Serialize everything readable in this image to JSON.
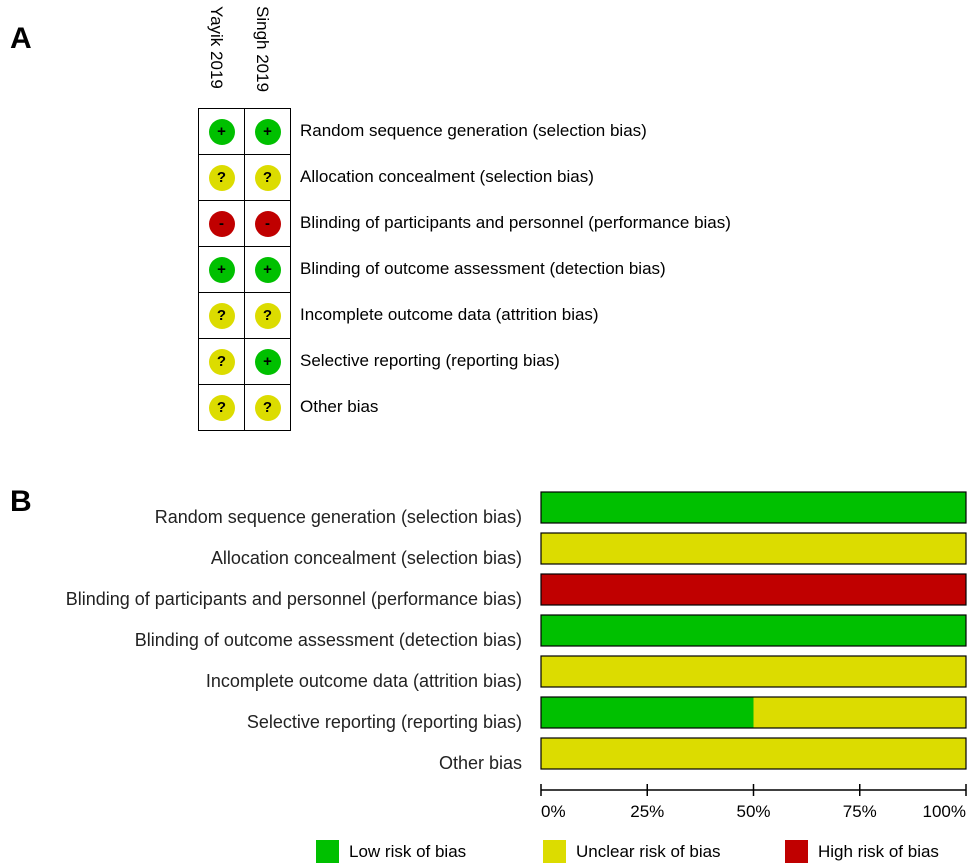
{
  "panels": {
    "a": "A",
    "b": "B"
  },
  "studies": [
    "Yayik 2019",
    "Singh 2019"
  ],
  "domains": [
    "Random sequence generation (selection bias)",
    "Allocation concealment (selection bias)",
    "Blinding of participants and personnel (performance bias)",
    "Blinding of outcome assessment (detection bias)",
    "Incomplete outcome data (attrition bias)",
    "Selective reporting (reporting bias)",
    "Other bias"
  ],
  "judgement_symbols": {
    "low": "+",
    "unclear": "?",
    "high": "-"
  },
  "judgements": [
    [
      "low",
      "low"
    ],
    [
      "unclear",
      "unclear"
    ],
    [
      "high",
      "high"
    ],
    [
      "low",
      "low"
    ],
    [
      "unclear",
      "unclear"
    ],
    [
      "unclear",
      "low"
    ],
    [
      "unclear",
      "unclear"
    ]
  ],
  "colors": {
    "low": "#00c000",
    "unclear": "#dcdc00",
    "high": "#c00000"
  },
  "chart_data": {
    "type": "bar",
    "orientation": "horizontal",
    "stacked": true,
    "categories": [
      "Random sequence generation (selection bias)",
      "Allocation concealment (selection bias)",
      "Blinding of participants and personnel (performance bias)",
      "Blinding of outcome assessment (detection bias)",
      "Incomplete outcome data (attrition bias)",
      "Selective reporting (reporting bias)",
      "Other bias"
    ],
    "series": [
      {
        "name": "Low risk of bias",
        "key": "low",
        "values": [
          100,
          0,
          0,
          100,
          0,
          50,
          0
        ]
      },
      {
        "name": "Unclear risk of bias",
        "key": "unclear",
        "values": [
          0,
          100,
          0,
          0,
          100,
          50,
          100
        ]
      },
      {
        "name": "High risk of bias",
        "key": "high",
        "values": [
          0,
          0,
          100,
          0,
          0,
          0,
          0
        ]
      }
    ],
    "xlim": [
      0,
      100
    ],
    "xticks": [
      0,
      25,
      50,
      75,
      100
    ],
    "xtick_labels": [
      "0%",
      "25%",
      "50%",
      "75%",
      "100%"
    ],
    "legend_position": "bottom"
  }
}
